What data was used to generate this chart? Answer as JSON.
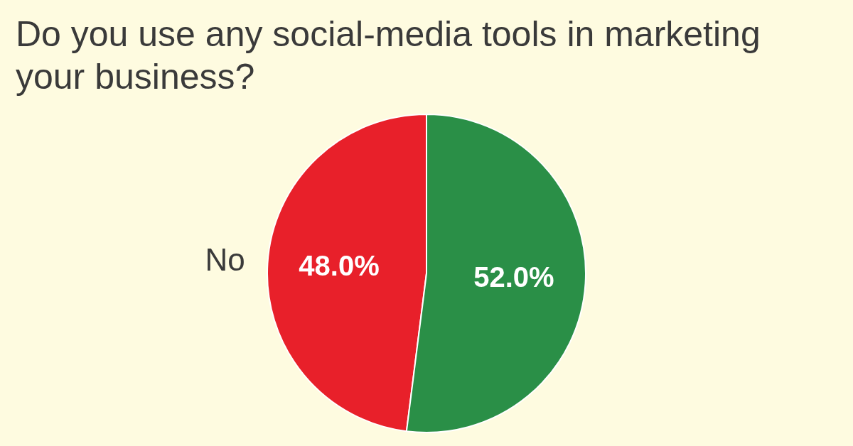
{
  "chart_data": {
    "type": "pie",
    "title": "Do you use any social-media tools in marketing your business?",
    "categories": [
      "No",
      null
    ],
    "values": [
      48.0,
      52.0
    ],
    "value_labels": [
      "48.0%",
      "52.0%"
    ],
    "colors": [
      "#e8202a",
      "#2a8f47"
    ],
    "legend": false
  }
}
